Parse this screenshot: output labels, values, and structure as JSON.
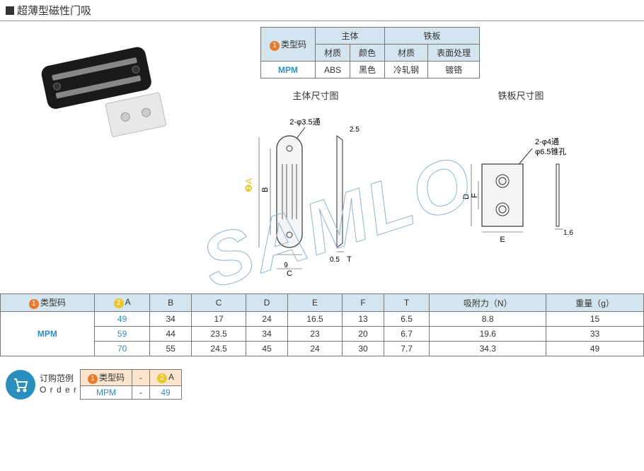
{
  "title": "超薄型磁性门吸",
  "specTable": {
    "headers": {
      "typeCode": "类型码",
      "body": "主体",
      "plate": "铁板",
      "material": "材质",
      "color": "颜色",
      "surface": "表面处理"
    },
    "row": {
      "code": "MPM",
      "bodyMat": "ABS",
      "bodyColor": "黑色",
      "plateMat": "冷轧钢",
      "plateSurface": "镀铬"
    }
  },
  "diagrams": {
    "bodyTitle": "主体尺寸图",
    "plateTitle": "铁板尺寸图",
    "labels": {
      "hole35": "2-φ3.5通",
      "hole4": "2-φ4通",
      "sink65": "φ6.5锥孔",
      "d25": "2.5",
      "d05": "0.5",
      "d9": "9",
      "d16": "1.6",
      "A": "A",
      "B": "B",
      "C": "C",
      "D": "D",
      "E": "E",
      "F": "F",
      "T": "T"
    }
  },
  "mainTable": {
    "headers": [
      "类型码",
      "A",
      "B",
      "C",
      "D",
      "E",
      "F",
      "T",
      "吸附力（N）",
      "重量（g）"
    ],
    "typeCode": "MPM",
    "rows": [
      {
        "A": "49",
        "B": "34",
        "C": "17",
        "D": "24",
        "E": "16.5",
        "F": "13",
        "T": "6.5",
        "force": "8.8",
        "weight": "15"
      },
      {
        "A": "59",
        "B": "44",
        "C": "23.5",
        "D": "34",
        "E": "23",
        "F": "20",
        "T": "6.7",
        "force": "19.6",
        "weight": "33"
      },
      {
        "A": "70",
        "B": "55",
        "C": "24.5",
        "D": "45",
        "E": "24",
        "F": "30",
        "T": "7.7",
        "force": "34.3",
        "weight": "49"
      }
    ]
  },
  "order": {
    "labelCn": "订购范例",
    "labelEn": "O r d e r",
    "typeCode": "类型码",
    "dash": "-",
    "code": "MPM",
    "aVal": "49",
    "aLabel": "A"
  },
  "watermark": "SAMLO",
  "colors": {
    "headerBg": "#d4e5f0",
    "brand": "#2b8fbd",
    "badge1": "#e87b2e",
    "badge2": "#e8c72e",
    "orderHdr": "#fce5cd"
  }
}
